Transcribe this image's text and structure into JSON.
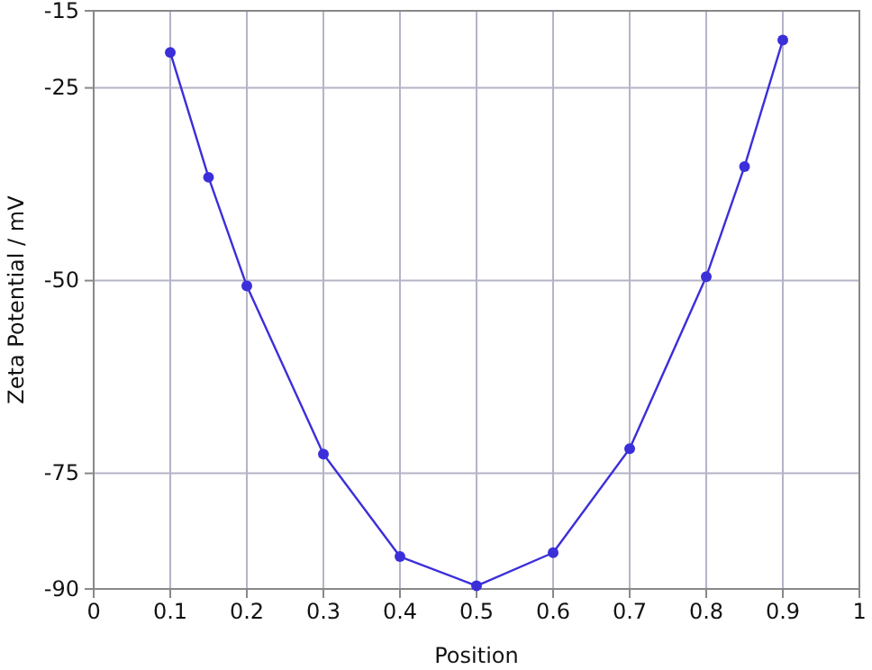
{
  "chart_data": {
    "type": "line",
    "xlabel": "Position",
    "ylabel": "Zeta Potential / mV",
    "x": [
      0.1,
      0.15,
      0.2,
      0.3,
      0.4,
      0.5,
      0.6,
      0.7,
      0.8,
      0.85,
      0.9
    ],
    "series": [
      {
        "color": "#3b2fd9",
        "values": [
          -20.4,
          -36.6,
          -50.7,
          -72.5,
          -85.8,
          -89.6,
          -85.3,
          -71.8,
          -49.5,
          -35.2,
          -18.8
        ]
      }
    ],
    "xlim": [
      0,
      1
    ],
    "xticks": [
      0,
      0.1,
      0.2,
      0.3,
      0.4,
      0.5,
      0.6,
      0.7,
      0.8,
      0.9,
      1
    ],
    "ylim": [
      -90,
      -15
    ],
    "yticks": [
      -15,
      -25,
      -50,
      -75,
      -90
    ],
    "grid": true,
    "marker": "circle",
    "line_style": "solid"
  }
}
